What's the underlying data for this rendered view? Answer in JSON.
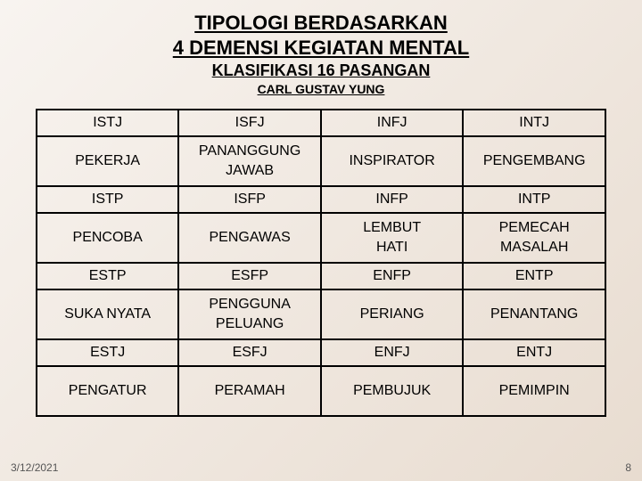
{
  "header": {
    "title_line1": "TIPOLOGI BERDASARKAN",
    "title_line2": "4 DEMENSI KEGIATAN MENTAL",
    "subtitle": "KLASIFIKASI 16 PASANGAN",
    "author": "CARL GUSTAV YUNG"
  },
  "table": {
    "rows": [
      {
        "kind": "type",
        "cells": [
          "ISTJ",
          "ISFJ",
          "INFJ",
          "INTJ"
        ]
      },
      {
        "kind": "desc",
        "cells": [
          [
            "PEKERJA"
          ],
          [
            "PANANGGUNG",
            "JAWAB"
          ],
          [
            "INSPIRATOR"
          ],
          [
            "PENGEMBANG"
          ]
        ]
      },
      {
        "kind": "type",
        "cells": [
          "ISTP",
          "ISFP",
          "INFP",
          "INTP"
        ]
      },
      {
        "kind": "desc",
        "cells": [
          [
            "PENCOBA"
          ],
          [
            "PENGAWAS"
          ],
          [
            "LEMBUT",
            "HATI"
          ],
          [
            "PEMECAH",
            "MASALAH"
          ]
        ]
      },
      {
        "kind": "type",
        "cells": [
          "ESTP",
          "ESFP",
          "ENFP",
          "ENTP"
        ]
      },
      {
        "kind": "desc",
        "cells": [
          [
            "SUKA NYATA"
          ],
          [
            "PENGGUNA",
            "PELUANG"
          ],
          [
            "PERIANG"
          ],
          [
            "PENANTANG"
          ]
        ]
      },
      {
        "kind": "type",
        "cells": [
          "ESTJ",
          "ESFJ",
          "ENFJ",
          "ENTJ"
        ]
      },
      {
        "kind": "desc",
        "cells": [
          [
            "PENGATUR"
          ],
          [
            "PERAMAH"
          ],
          [
            "PEMBUJUK"
          ],
          [
            "PEMIMPIN"
          ]
        ]
      }
    ]
  },
  "footer": {
    "date": "3/12/2021",
    "page": "8"
  },
  "style": {
    "border_color": "#000000",
    "text_color": "#000000",
    "footer_color": "#555555",
    "bg_gradient_start": "#f8f4f0",
    "bg_gradient_end": "#e8dcd0"
  }
}
